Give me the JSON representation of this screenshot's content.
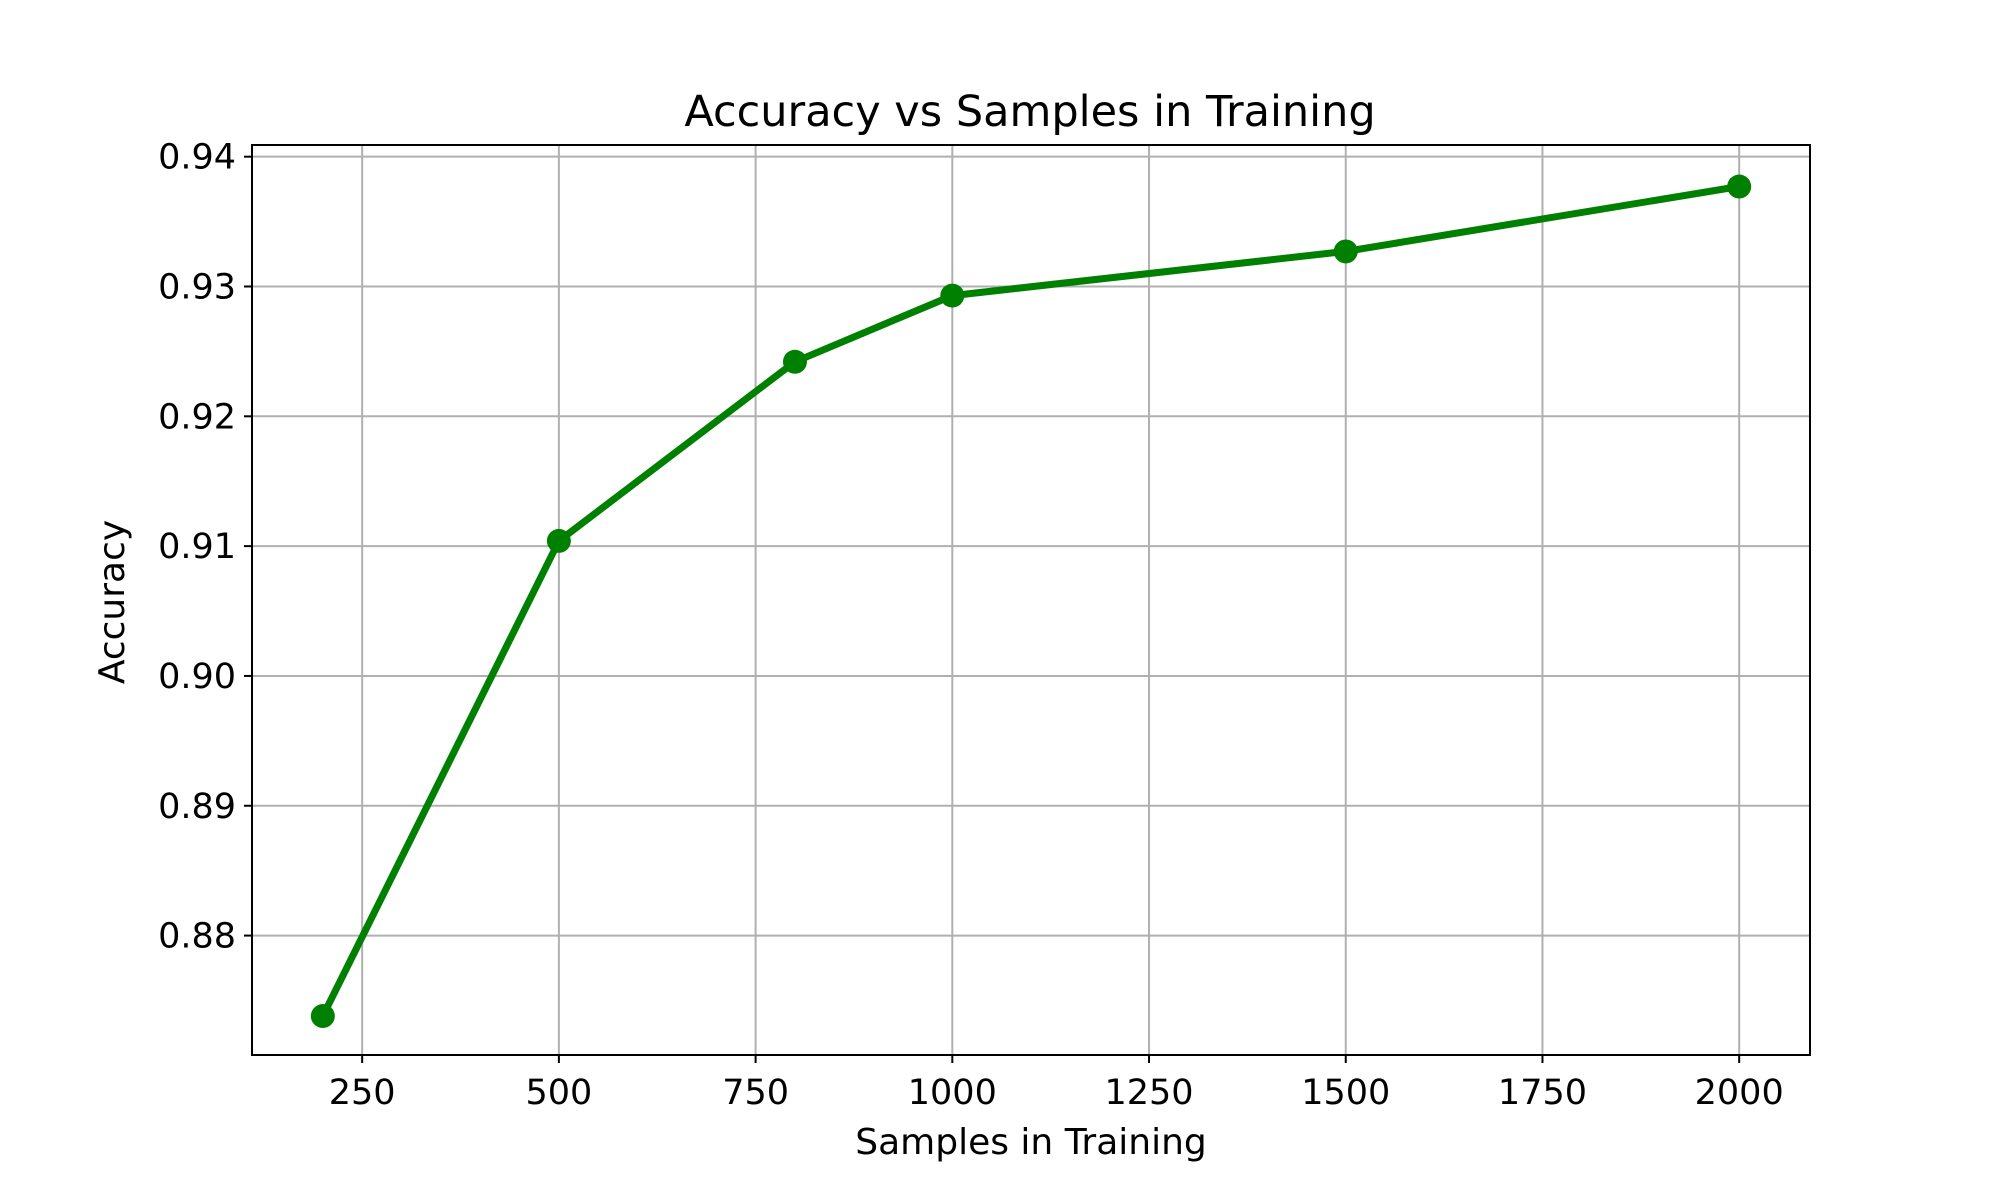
{
  "chart_data": {
    "type": "line",
    "title": "Accuracy vs Samples in Training",
    "xlabel": "Samples in Training",
    "ylabel": "Accuracy",
    "x": [
      200,
      500,
      800,
      1000,
      1500,
      2000
    ],
    "series": [
      {
        "values": [
          0.8738,
          0.9104,
          0.9242,
          0.9293,
          0.9327,
          0.9377
        ],
        "color": "#008000",
        "marker": "circle"
      }
    ],
    "xlim": [
      110,
      2090
    ],
    "ylim": [
      0.8708,
      0.9409
    ],
    "xticks": [
      250,
      500,
      750,
      1000,
      1250,
      1500,
      1750,
      2000
    ],
    "xtick_labels": [
      "250",
      "500",
      "750",
      "1000",
      "1250",
      "1500",
      "1750",
      "2000"
    ],
    "yticks": [
      0.88,
      0.89,
      0.9,
      0.91,
      0.92,
      0.93,
      0.94
    ],
    "ytick_labels": [
      "0.88",
      "0.89",
      "0.90",
      "0.91",
      "0.92",
      "0.93",
      "0.94"
    ],
    "grid": true,
    "legend": "none"
  }
}
